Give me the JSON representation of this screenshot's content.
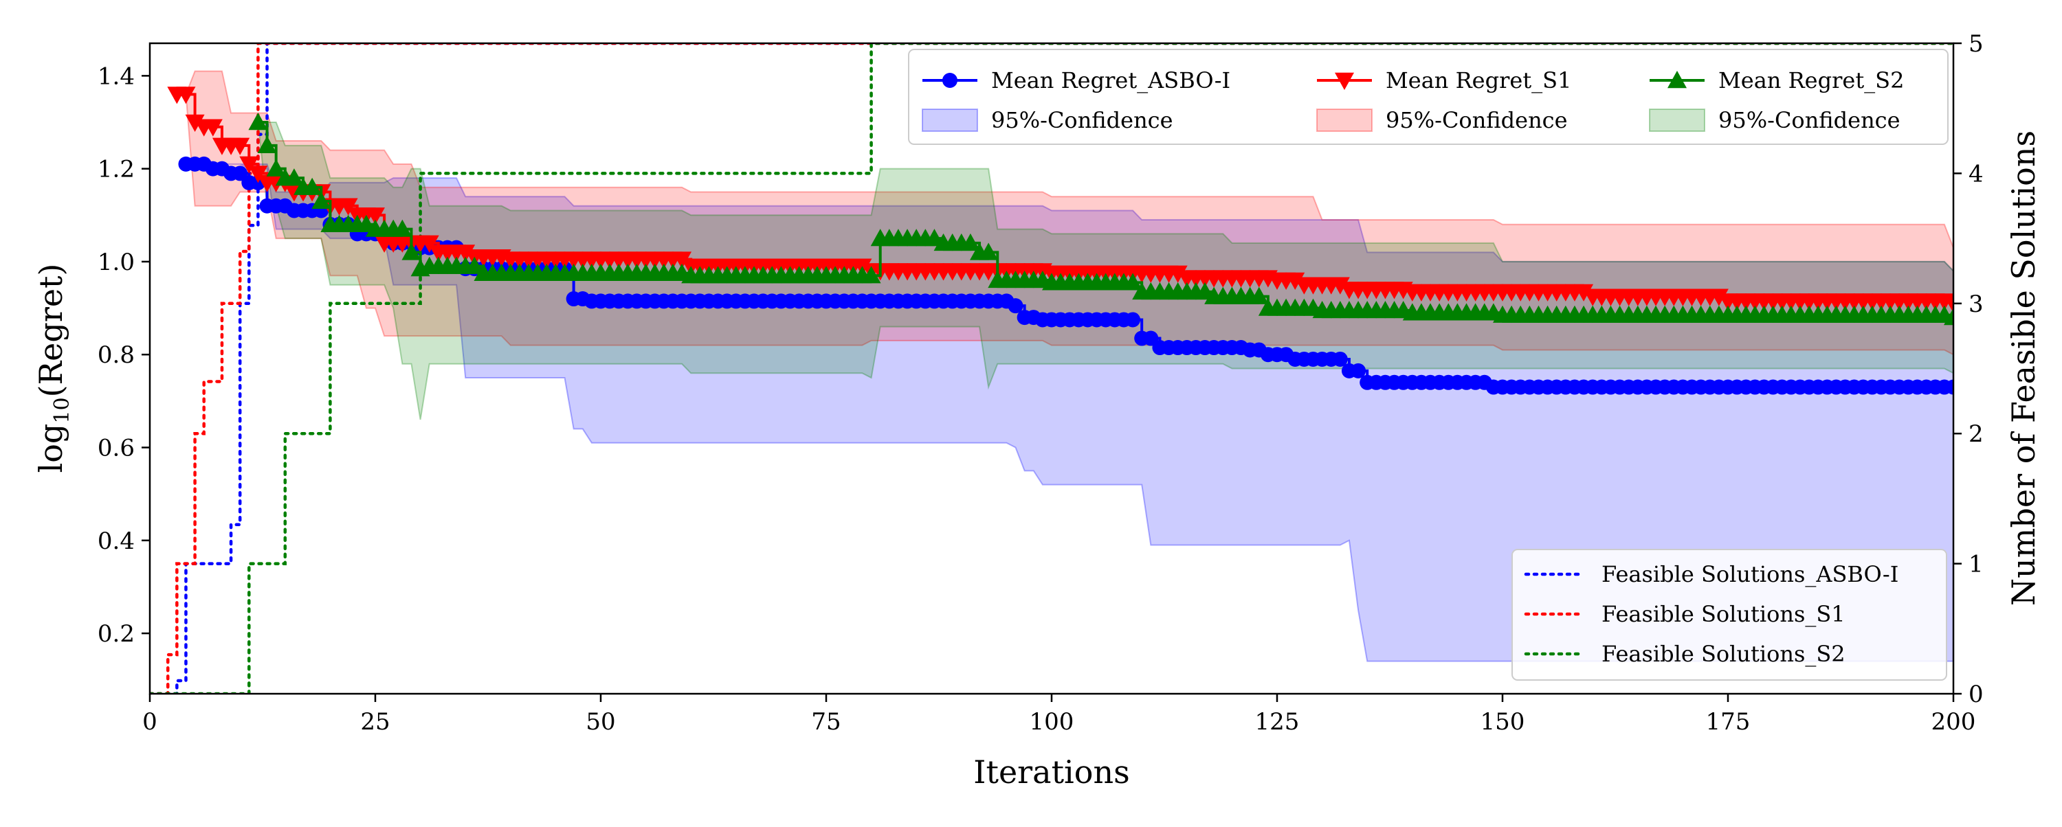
{
  "chart_data": {
    "type": "line",
    "title": "",
    "xlabel": "Iterations",
    "ylabel": "log10(Regret)",
    "ylabel_parts": {
      "base": "log",
      "sub": "10",
      "rest": "(Regret)"
    },
    "y2label": "Number of Feasible Solutions",
    "xlim": [
      0,
      200
    ],
    "ylim": [
      0.07,
      1.47
    ],
    "y2lim": [
      0,
      5
    ],
    "xticks": [
      0,
      25,
      50,
      75,
      100,
      125,
      150,
      175,
      200
    ],
    "yticks": [
      0.2,
      0.4,
      0.6,
      0.8,
      1.0,
      1.2,
      1.4
    ],
    "y2ticks": [
      0,
      1,
      2,
      3,
      4,
      5
    ],
    "grid": false,
    "legend_main": "top-right",
    "legend_feasible": "bottom-right",
    "series": [
      {
        "name": "Mean Regret_ASBO-I",
        "color": "#0000ff",
        "marker": "circle",
        "steps": [
          [
            4,
            1.21
          ],
          [
            7,
            1.2
          ],
          [
            9,
            1.19
          ],
          [
            11,
            1.17
          ],
          [
            13,
            1.12
          ],
          [
            16,
            1.11
          ],
          [
            20,
            1.08
          ],
          [
            23,
            1.06
          ],
          [
            27,
            1.04
          ],
          [
            30,
            1.03
          ],
          [
            35,
            0.985
          ],
          [
            47,
            0.92
          ],
          [
            49,
            0.915
          ],
          [
            96,
            0.905
          ],
          [
            97,
            0.88
          ],
          [
            99,
            0.875
          ],
          [
            110,
            0.835
          ],
          [
            112,
            0.815
          ],
          [
            122,
            0.81
          ],
          [
            124,
            0.8
          ],
          [
            127,
            0.79
          ],
          [
            133,
            0.765
          ],
          [
            135,
            0.74
          ],
          [
            149,
            0.73
          ],
          [
            200,
            0.73
          ]
        ]
      },
      {
        "name": "Mean Regret_S1",
        "color": "#ff0000",
        "marker": "triangle-down",
        "steps": [
          [
            3,
            1.36
          ],
          [
            5,
            1.3
          ],
          [
            6,
            1.29
          ],
          [
            8,
            1.25
          ],
          [
            11,
            1.21
          ],
          [
            12,
            1.19
          ],
          [
            13,
            1.17
          ],
          [
            16,
            1.15
          ],
          [
            20,
            1.12
          ],
          [
            23,
            1.1
          ],
          [
            26,
            1.04
          ],
          [
            32,
            1.02
          ],
          [
            36,
            1.01
          ],
          [
            40,
            1.005
          ],
          [
            60,
            0.99
          ],
          [
            80,
            0.98
          ],
          [
            100,
            0.975
          ],
          [
            115,
            0.965
          ],
          [
            125,
            0.96
          ],
          [
            128,
            0.95
          ],
          [
            133,
            0.94
          ],
          [
            140,
            0.935
          ],
          [
            160,
            0.925
          ],
          [
            175,
            0.915
          ],
          [
            200,
            0.91
          ]
        ]
      },
      {
        "name": "Mean Regret_S2",
        "color": "#008000",
        "marker": "triangle-up",
        "steps": [
          [
            12,
            1.3
          ],
          [
            13,
            1.25
          ],
          [
            14,
            1.2
          ],
          [
            15,
            1.18
          ],
          [
            17,
            1.16
          ],
          [
            19,
            1.13
          ],
          [
            20,
            1.08
          ],
          [
            25,
            1.07
          ],
          [
            29,
            1.02
          ],
          [
            30,
            0.985
          ],
          [
            31,
            0.99
          ],
          [
            37,
            0.975
          ],
          [
            60,
            0.97
          ],
          [
            81,
            1.05
          ],
          [
            88,
            1.04
          ],
          [
            92,
            1.02
          ],
          [
            94,
            0.96
          ],
          [
            100,
            0.955
          ],
          [
            110,
            0.935
          ],
          [
            118,
            0.925
          ],
          [
            124,
            0.9
          ],
          [
            130,
            0.895
          ],
          [
            140,
            0.89
          ],
          [
            150,
            0.885
          ],
          [
            200,
            0.88
          ]
        ]
      }
    ],
    "confidence_bands": [
      {
        "name": "95%-Confidence",
        "of": "Mean Regret_ASBO-I",
        "color": "#0000ff",
        "upper": [
          [
            4,
            1.21
          ],
          [
            12,
            1.21
          ],
          [
            14,
            1.15
          ],
          [
            20,
            1.17
          ],
          [
            27,
            1.18
          ],
          [
            35,
            1.14
          ],
          [
            47,
            1.12
          ],
          [
            96,
            1.12
          ],
          [
            100,
            1.11
          ],
          [
            110,
            1.09
          ],
          [
            135,
            1.02
          ],
          [
            150,
            1.0
          ],
          [
            200,
            0.98
          ]
        ],
        "lower": [
          [
            4,
            1.21
          ],
          [
            11,
            1.2
          ],
          [
            14,
            1.07
          ],
          [
            20,
            1.05
          ],
          [
            27,
            0.95
          ],
          [
            35,
            0.75
          ],
          [
            47,
            0.64
          ],
          [
            49,
            0.61
          ],
          [
            96,
            0.6
          ],
          [
            97,
            0.55
          ],
          [
            99,
            0.52
          ],
          [
            110,
            0.52
          ],
          [
            111,
            0.39
          ],
          [
            112,
            0.39
          ],
          [
            133,
            0.4
          ],
          [
            134,
            0.25
          ],
          [
            135,
            0.14
          ],
          [
            149,
            0.14
          ],
          [
            200,
            0.14
          ]
        ]
      },
      {
        "name": "95%-Confidence",
        "of": "Mean Regret_S1",
        "color": "#ff0000",
        "upper": [
          [
            3,
            1.36
          ],
          [
            5,
            1.41
          ],
          [
            8,
            1.41
          ],
          [
            9,
            1.32
          ],
          [
            14,
            1.26
          ],
          [
            20,
            1.24
          ],
          [
            27,
            1.21
          ],
          [
            30,
            1.16
          ],
          [
            40,
            1.16
          ],
          [
            60,
            1.15
          ],
          [
            80,
            1.15
          ],
          [
            100,
            1.14
          ],
          [
            130,
            1.09
          ],
          [
            150,
            1.08
          ],
          [
            200,
            1.03
          ]
        ],
        "lower": [
          [
            3,
            1.36
          ],
          [
            5,
            1.12
          ],
          [
            8,
            1.12
          ],
          [
            10,
            1.15
          ],
          [
            14,
            1.05
          ],
          [
            20,
            0.97
          ],
          [
            24,
            0.9
          ],
          [
            26,
            0.84
          ],
          [
            40,
            0.82
          ],
          [
            60,
            0.82
          ],
          [
            80,
            0.83
          ],
          [
            100,
            0.82
          ],
          [
            130,
            0.82
          ],
          [
            150,
            0.81
          ],
          [
            200,
            0.8
          ]
        ]
      },
      {
        "name": "95%-Confidence",
        "of": "Mean Regret_S2",
        "color": "#008000",
        "upper": [
          [
            12,
            1.3
          ],
          [
            13,
            1.3
          ],
          [
            15,
            1.25
          ],
          [
            20,
            1.18
          ],
          [
            27,
            1.16
          ],
          [
            29,
            1.2
          ],
          [
            31,
            1.12
          ],
          [
            40,
            1.11
          ],
          [
            60,
            1.1
          ],
          [
            80,
            1.1
          ],
          [
            81,
            1.2
          ],
          [
            93,
            1.2
          ],
          [
            94,
            1.07
          ],
          [
            100,
            1.06
          ],
          [
            120,
            1.04
          ],
          [
            150,
            1.0
          ],
          [
            200,
            0.98
          ]
        ],
        "lower": [
          [
            12,
            1.3
          ],
          [
            13,
            1.12
          ],
          [
            15,
            1.05
          ],
          [
            20,
            0.95
          ],
          [
            27,
            0.9
          ],
          [
            28,
            0.78
          ],
          [
            30,
            0.66
          ],
          [
            31,
            0.78
          ],
          [
            40,
            0.78
          ],
          [
            60,
            0.76
          ],
          [
            80,
            0.75
          ],
          [
            81,
            0.86
          ],
          [
            92,
            0.86
          ],
          [
            93,
            0.73
          ],
          [
            94,
            0.78
          ],
          [
            100,
            0.78
          ],
          [
            120,
            0.77
          ],
          [
            150,
            0.77
          ],
          [
            200,
            0.76
          ]
        ]
      }
    ],
    "feasible_series": [
      {
        "name": "Feasible Solutions_ASBO-I",
        "color": "#0000ff",
        "steps": [
          [
            0,
            0
          ],
          [
            3,
            0
          ],
          [
            3,
            0.1
          ],
          [
            4,
            0.1
          ],
          [
            4,
            1
          ],
          [
            9,
            1
          ],
          [
            9,
            1.3
          ],
          [
            10,
            1.3
          ],
          [
            10,
            3
          ],
          [
            11,
            3
          ],
          [
            11,
            3.6
          ],
          [
            12,
            3.6
          ],
          [
            12,
            4.3
          ],
          [
            13,
            4.3
          ],
          [
            13,
            5
          ],
          [
            200,
            5
          ]
        ]
      },
      {
        "name": "Feasible Solutions_S1",
        "color": "#ff0000",
        "steps": [
          [
            0,
            0
          ],
          [
            2,
            0
          ],
          [
            2,
            0.3
          ],
          [
            3,
            0.3
          ],
          [
            3,
            1
          ],
          [
            5,
            1
          ],
          [
            5,
            2
          ],
          [
            6,
            2
          ],
          [
            6,
            2.4
          ],
          [
            8,
            2.4
          ],
          [
            8,
            3
          ],
          [
            10,
            3
          ],
          [
            10,
            3.4
          ],
          [
            11,
            3.4
          ],
          [
            11,
            4
          ],
          [
            12,
            4
          ],
          [
            12,
            5
          ],
          [
            200,
            5
          ]
        ]
      },
      {
        "name": "Feasible Solutions_S2",
        "color": "#008000",
        "steps": [
          [
            0,
            0
          ],
          [
            11,
            0
          ],
          [
            11,
            1
          ],
          [
            15,
            1
          ],
          [
            15,
            2
          ],
          [
            20,
            2
          ],
          [
            20,
            3
          ],
          [
            30,
            3
          ],
          [
            30,
            4
          ],
          [
            80,
            4
          ],
          [
            80,
            5
          ],
          [
            200,
            5
          ]
        ]
      }
    ]
  }
}
